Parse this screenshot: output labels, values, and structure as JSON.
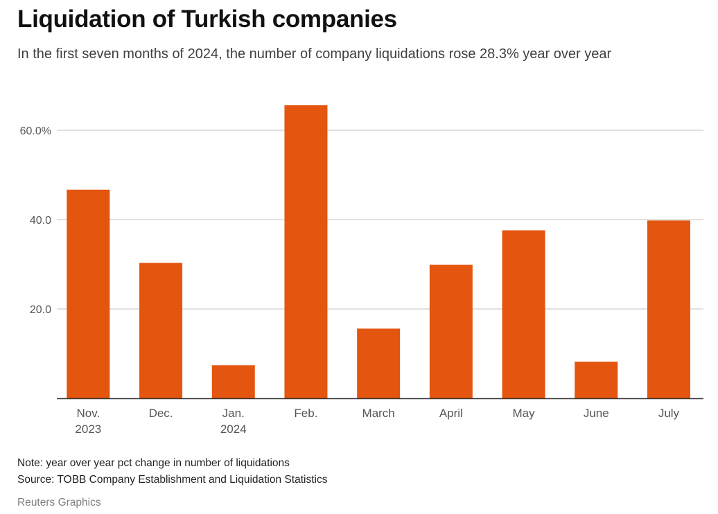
{
  "chart_data": {
    "type": "bar",
    "title": "Liquidation of Turkish companies",
    "subtitle": "In the first seven months of 2024, the number of company liquidations rose 28.3% year over year",
    "categories": [
      [
        "Nov.",
        "2023"
      ],
      [
        "Dec."
      ],
      [
        "Jan.",
        "2024"
      ],
      [
        "Feb."
      ],
      [
        "March"
      ],
      [
        "April"
      ],
      [
        "May"
      ],
      [
        "June"
      ],
      [
        "July"
      ]
    ],
    "values": [
      46.7,
      30.3,
      7.4,
      65.6,
      15.6,
      29.9,
      37.6,
      8.2,
      39.8
    ],
    "yticks": [
      {
        "value": 20,
        "label": "20.0"
      },
      {
        "value": 40,
        "label": "40.0"
      },
      {
        "value": 60,
        "label": "60.0%"
      }
    ],
    "ylim": [
      0,
      70
    ],
    "xlabel": "",
    "ylabel": "",
    "grid": true,
    "bar_color": "#e4550f",
    "gridline_color": "#cfcfcf",
    "axis_color": "#333333"
  },
  "note": "Note: year over year pct change in number of liquidations",
  "source": "Source: TOBB Company Establishment and Liquidation Statistics",
  "credit": "Reuters Graphics"
}
